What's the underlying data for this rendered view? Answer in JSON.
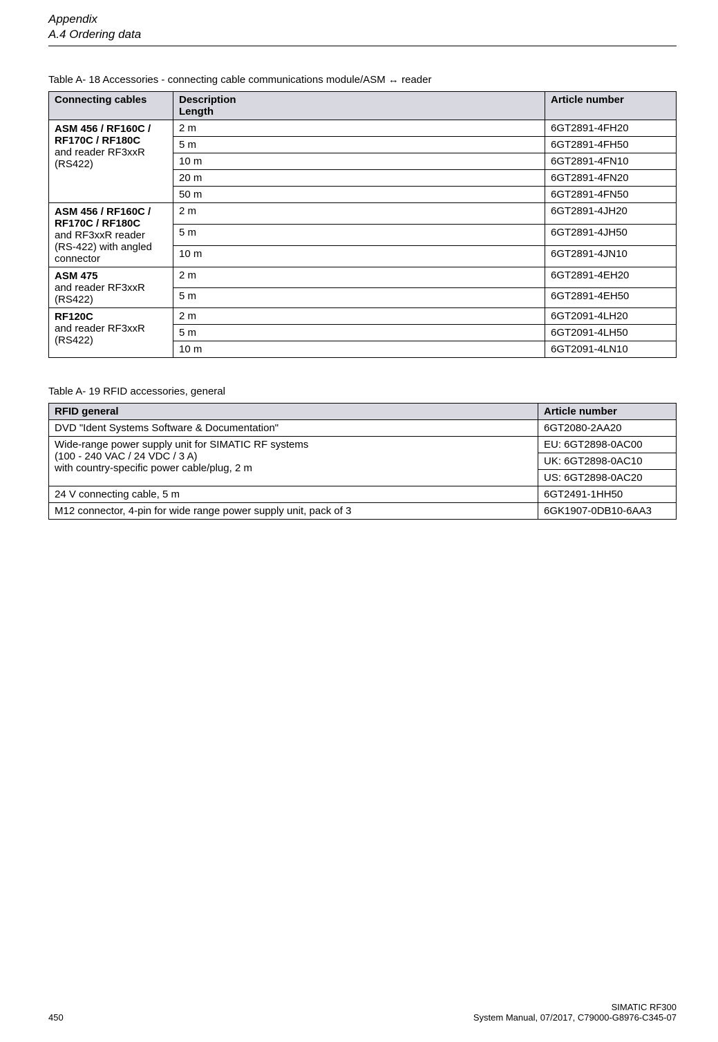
{
  "header": {
    "appendix": "Appendix",
    "section": "A.4 Ordering data"
  },
  "table18": {
    "caption": "Table A- 18    Accessories - connecting cable communications module/ASM ↔ reader",
    "headers": {
      "col1": "Connecting cables",
      "col2": "Description",
      "col2sub": "Length",
      "col3": "Article number"
    },
    "group1": {
      "label_bold": "ASM 456 / RF160C / RF170C / RF180C",
      "label_plain": "and reader RF3xxR (RS422)",
      "rows": [
        {
          "len": "2 m",
          "art": "6GT2891-4FH20"
        },
        {
          "len": "5 m",
          "art": "6GT2891-4FH50"
        },
        {
          "len": "10 m",
          "art": "6GT2891-4FN10"
        },
        {
          "len": "20 m",
          "art": "6GT2891-4FN20"
        },
        {
          "len": "50 m",
          "art": "6GT2891-4FN50"
        }
      ]
    },
    "group2": {
      "label_bold": "ASM 456 / RF160C / RF170C / RF180C",
      "label_plain": "and RF3xxR reader (RS-422) with angled connector",
      "rows": [
        {
          "len": "2 m",
          "art": "6GT2891-4JH20"
        },
        {
          "len": "5 m",
          "art": "6GT2891-4JH50"
        },
        {
          "len": "10 m",
          "art": "6GT2891-4JN10"
        }
      ]
    },
    "group3": {
      "label_bold": "ASM 475",
      "label_plain": "and reader RF3xxR (RS422)",
      "rows": [
        {
          "len": "2 m",
          "art": "6GT2891-4EH20"
        },
        {
          "len": "5 m",
          "art": "6GT2891-4EH50"
        }
      ]
    },
    "group4": {
      "label_bold": "RF120C",
      "label_plain": "and reader RF3xxR (RS422)",
      "rows": [
        {
          "len": "2 m",
          "art": "6GT2091-4LH20"
        },
        {
          "len": "5 m",
          "art": "6GT2091-4LH50"
        },
        {
          "len": "10 m",
          "art": "6GT2091-4LN10"
        }
      ]
    }
  },
  "table19": {
    "caption": "Table A- 19    RFID accessories, general",
    "headers": {
      "col1": "RFID general",
      "col2": "Article number"
    },
    "row1": {
      "desc": "DVD \"Ident Systems Software & Documentation\"",
      "art": "6GT2080-2AA20"
    },
    "row2": {
      "desc_l1": "Wide-range power supply unit for SIMATIC RF systems",
      "desc_l2": "(100 - 240 VAC / 24 VDC / 3 A)",
      "desc_l3": "with country-specific power cable/plug, 2 m",
      "art_eu": "EU: 6GT2898-0AC00",
      "art_uk": "UK: 6GT2898-0AC10",
      "art_us": "US: 6GT2898-0AC20"
    },
    "row3": {
      "desc": "24 V connecting cable, 5 m",
      "art": "6GT2491-1HH50"
    },
    "row4": {
      "desc": "M12 connector, 4-pin for wide range power supply unit, pack of 3",
      "art": "6GK1907-0DB10-6AA3"
    }
  },
  "footer": {
    "page": "450",
    "title": "SIMATIC RF300",
    "manual": "System Manual, 07/2017, C79000-G8976-C345-07"
  }
}
